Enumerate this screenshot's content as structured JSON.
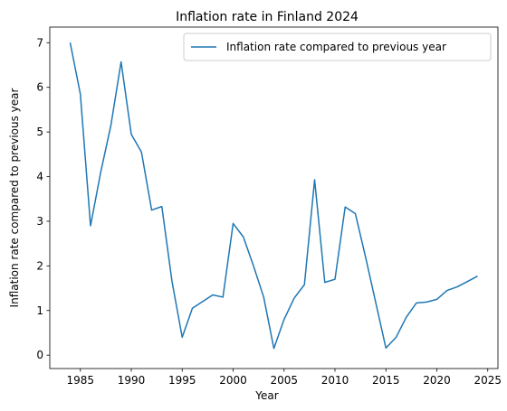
{
  "chart_data": {
    "type": "line",
    "title": "Inflation rate in Finland 2024",
    "xlabel": "Year",
    "ylabel": "Inflation rate compared to previous year",
    "xlim": [
      1982,
      2026
    ],
    "ylim": [
      -0.3,
      7.35
    ],
    "xticks": [
      1985,
      1990,
      1995,
      2000,
      2005,
      2010,
      2015,
      2020,
      2025
    ],
    "yticks": [
      0,
      1,
      2,
      3,
      4,
      5,
      6,
      7
    ],
    "grid": false,
    "legend_position": "top-right",
    "series": [
      {
        "name": "Inflation rate compared to previous year",
        "color": "#1f77b4",
        "x": [
          1984,
          1985,
          1986,
          1987,
          1988,
          1989,
          1990,
          1991,
          1992,
          1993,
          1994,
          1995,
          1996,
          1997,
          1998,
          1999,
          2000,
          2001,
          2002,
          2003,
          2004,
          2005,
          2006,
          2007,
          2008,
          2009,
          2010,
          2011,
          2012,
          2013,
          2014,
          2015,
          2016,
          2017,
          2018,
          2019,
          2020,
          2021,
          2022,
          2023,
          2024
        ],
        "values": [
          7.0,
          5.85,
          2.9,
          4.1,
          5.15,
          6.57,
          4.95,
          4.55,
          3.25,
          3.33,
          1.65,
          0.4,
          1.05,
          1.2,
          1.35,
          1.3,
          2.95,
          2.65,
          2.0,
          1.3,
          0.15,
          0.8,
          1.28,
          1.58,
          3.93,
          1.63,
          1.7,
          3.32,
          3.17,
          2.2,
          1.18,
          0.16,
          0.4,
          0.85,
          1.17,
          1.19,
          1.25,
          1.45,
          1.53,
          1.65,
          1.77
        ]
      }
    ]
  }
}
